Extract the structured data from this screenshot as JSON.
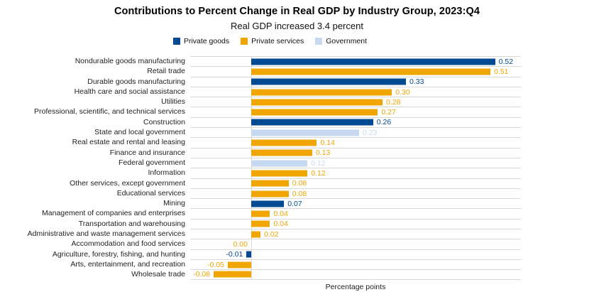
{
  "title": "Contributions to Percent Change in Real GDP by Industry Group, 2023:Q4",
  "subtitle": "Real GDP increased 3.4 percent",
  "chart_data": {
    "type": "bar",
    "orientation": "horizontal",
    "title": "Contributions to Percent Change in Real GDP by Industry Group, 2023:Q4",
    "subtitle": "Real GDP increased 3.4 percent",
    "xlabel": "Percentage points",
    "xlim": [
      -0.13,
      0.575
    ],
    "grid": "horizontal-row-separators",
    "legend_position": "top-center",
    "gridline_color": "#d9d9d9",
    "series_colors": {
      "goods": "#004A93",
      "services": "#F0A500",
      "government": "#C6D9F0"
    },
    "legend": [
      {
        "label": "Private goods",
        "group": "goods"
      },
      {
        "label": "Private services",
        "group": "services"
      },
      {
        "label": "Government",
        "group": "government"
      }
    ],
    "rows": [
      {
        "label": "Nondurable goods manufacturing",
        "value": 0.52,
        "display": "0.52",
        "group": "goods"
      },
      {
        "label": "Retail trade",
        "value": 0.51,
        "display": "0.51",
        "group": "services"
      },
      {
        "label": "Durable goods manufacturing",
        "value": 0.33,
        "display": "0.33",
        "group": "goods"
      },
      {
        "label": "Health care and social assistance",
        "value": 0.3,
        "display": "0.30",
        "group": "services"
      },
      {
        "label": "Utilities",
        "value": 0.28,
        "display": "0.28",
        "group": "services"
      },
      {
        "label": "Professional, scientific, and technical services",
        "value": 0.27,
        "display": "0.27",
        "group": "services"
      },
      {
        "label": "Construction",
        "value": 0.26,
        "display": "0.26",
        "group": "goods"
      },
      {
        "label": "State and local government",
        "value": 0.23,
        "display": "0.23",
        "group": "government"
      },
      {
        "label": "Real estate and rental and leasing",
        "value": 0.14,
        "display": "0.14",
        "group": "services"
      },
      {
        "label": "Finance and insurance",
        "value": 0.13,
        "display": "0.13",
        "group": "services"
      },
      {
        "label": "Federal government",
        "value": 0.12,
        "display": "0.12",
        "group": "government"
      },
      {
        "label": "Information",
        "value": 0.12,
        "display": "0.12",
        "group": "services"
      },
      {
        "label": "Other services, except government",
        "value": 0.08,
        "display": "0.08",
        "group": "services"
      },
      {
        "label": "Educational services",
        "value": 0.08,
        "display": "0.08",
        "group": "services"
      },
      {
        "label": "Mining",
        "value": 0.07,
        "display": "0.07",
        "group": "goods"
      },
      {
        "label": "Management of companies and enterprises",
        "value": 0.04,
        "display": "0.04",
        "group": "services"
      },
      {
        "label": "Transportation and warehousing",
        "value": 0.04,
        "display": "0.04",
        "group": "services"
      },
      {
        "label": "Administrative and waste management services",
        "value": 0.02,
        "display": "0.02",
        "group": "services"
      },
      {
        "label": "Accommodation and food services",
        "value": 0.0,
        "display": "0.00",
        "group": "services"
      },
      {
        "label": "Agriculture, forestry, fishing, and hunting",
        "value": -0.01,
        "display": "-0.01",
        "group": "goods"
      },
      {
        "label": "Arts, entertainment, and recreation",
        "value": -0.05,
        "display": "-0.05",
        "group": "services"
      },
      {
        "label": "Wholesale trade",
        "value": -0.08,
        "display": "-0.08",
        "group": "services"
      }
    ]
  }
}
